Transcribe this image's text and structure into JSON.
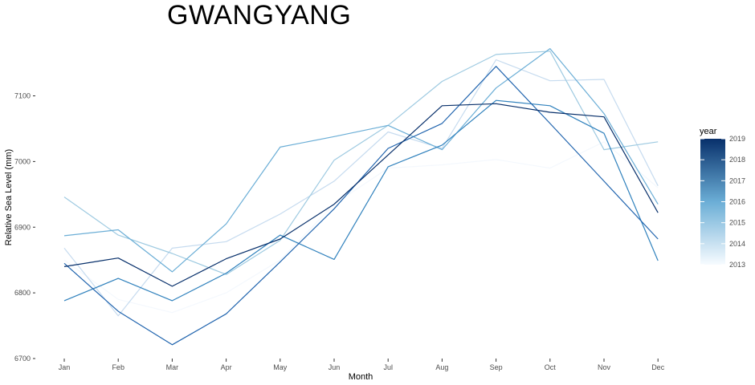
{
  "chart_data": {
    "type": "line",
    "title": "GWANGYANG",
    "xlabel": "Month",
    "ylabel": "Relative Sea Level (mm)",
    "categories": [
      "Jan",
      "Feb",
      "Mar",
      "Apr",
      "May",
      "Jun",
      "Jul",
      "Aug",
      "Sep",
      "Oct",
      "Nov",
      "Dec"
    ],
    "ylim": [
      6700,
      7180
    ],
    "yticks": [
      6700,
      6800,
      6900,
      7000,
      7100
    ],
    "grid": false,
    "legend": {
      "title": "year",
      "position": "right",
      "type": "colorbar",
      "range": [
        2013,
        2019
      ],
      "ticks": [
        2013,
        2014,
        2015,
        2016,
        2017,
        2018,
        2019
      ],
      "color_low": "#f7fbff",
      "color_high": "#08306b"
    },
    "series": [
      {
        "year": 2013,
        "color": "#f4f8fd",
        "values": [
          6850,
          6790,
          6770,
          6800,
          6850,
          6935,
          6990,
          6995,
          7003,
          6990,
          7030,
          6960
        ]
      },
      {
        "year": 2014,
        "color": "#c6dbef",
        "values": [
          6868,
          6765,
          6868,
          6878,
          6920,
          6970,
          7045,
          7020,
          7155,
          7123,
          7125,
          6963
        ]
      },
      {
        "year": 2015,
        "color": "#9ecae1",
        "values": [
          6946,
          6888,
          6860,
          6828,
          6880,
          7002,
          7055,
          7122,
          7163,
          7168,
          7018,
          7030
        ]
      },
      {
        "year": 2016,
        "color": "#6baed6",
        "values": [
          6887,
          6896,
          6832,
          6905,
          7022,
          7038,
          7055,
          7018,
          7112,
          7172,
          7073,
          6935
        ]
      },
      {
        "year": 2017,
        "color": "#3182bd",
        "values": [
          6788,
          6822,
          6788,
          6830,
          6888,
          6851,
          6992,
          7025,
          7093,
          7085,
          7043,
          6849
        ]
      },
      {
        "year": 2018,
        "color": "#2064ae",
        "values": [
          6845,
          6772,
          6721,
          6768,
          6847,
          6928,
          7020,
          7058,
          7145,
          7058,
          6970,
          6882
        ]
      },
      {
        "year": 2019,
        "color": "#08306b",
        "values": [
          6840,
          6853,
          6810,
          6852,
          6882,
          6935,
          7010,
          7085,
          7088,
          7075,
          7068,
          6922
        ]
      }
    ]
  }
}
